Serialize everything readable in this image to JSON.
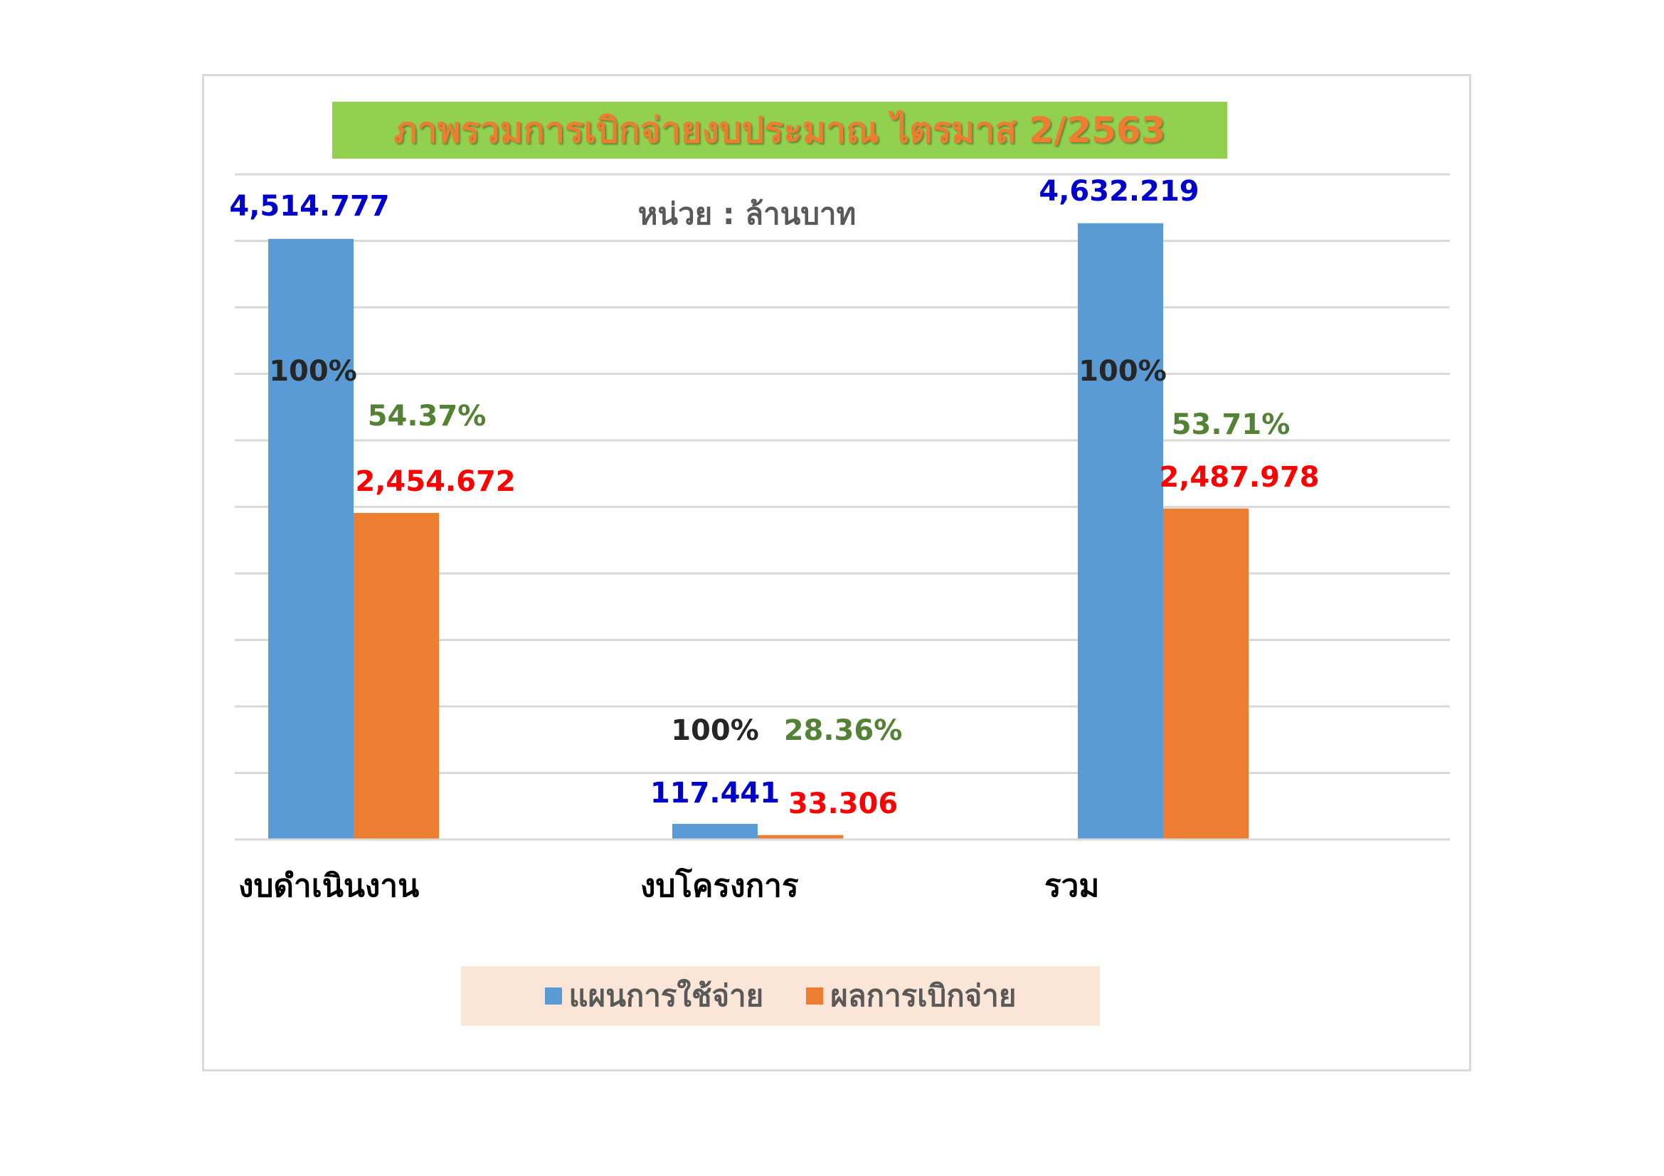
{
  "chart_data": {
    "type": "bar",
    "title": "ภาพรวมการเบิกจ่ายงบประมาณ ไตรมาส 2/2563",
    "unit_label": "หน่วย : ล้านบาท",
    "categories": [
      "งบดำเนินงาน",
      "งบโครงการ",
      "รวม"
    ],
    "series": [
      {
        "name": "แผนการใช้จ่าย",
        "color": "#5b9bd5",
        "values": [
          4514.777,
          117.441,
          4632.219
        ],
        "value_labels": [
          "4,514.777",
          "117.441",
          "4,632.219"
        ],
        "percent_labels": [
          "100%",
          "100%",
          "100%"
        ]
      },
      {
        "name": "ผลการเบิกจ่าย",
        "color": "#ed7d31",
        "values": [
          2454.672,
          33.306,
          2487.978
        ],
        "value_labels": [
          "2,454.672",
          "33.306",
          "2,487.978"
        ],
        "percent_labels": [
          "54.37%",
          "28.36%",
          "53.71%"
        ]
      }
    ],
    "ylim": [
      0,
      5000
    ],
    "grid": true,
    "legend_position": "bottom",
    "colors": {
      "plan_value_label": "#0000cc",
      "result_value_label": "#ff0000",
      "plan_percent_label": "#262626",
      "result_percent_label": "#548235",
      "category_label": "#000000",
      "gridline": "#d9d9d9"
    }
  }
}
